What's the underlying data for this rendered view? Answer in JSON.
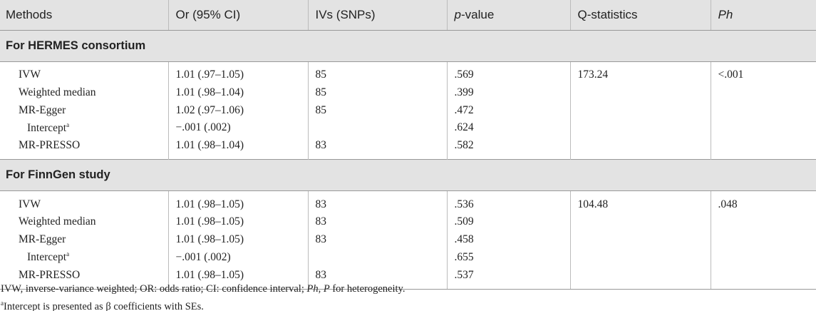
{
  "table": {
    "header": [
      "Methods",
      "Or (95% CI)",
      "IVs (SNPs)",
      [
        {
          "i": "p"
        },
        "-value"
      ],
      "Q-statistics",
      [
        {
          "i": "Ph"
        }
      ]
    ],
    "sections": [
      {
        "title": "For HERMES consortium",
        "rows": [
          [
            "IVW",
            "1.01 (.97–1.05)",
            "85",
            ".569",
            "173.24",
            "<.001"
          ],
          [
            "Weighted median",
            "1.01 (.98–1.04)",
            "85",
            ".399",
            null,
            null
          ],
          [
            "MR-Egger",
            "1.02 (.97–1.06)",
            "85",
            ".472",
            null,
            null
          ],
          [
            [
              "Intercept",
              {
                "sup": "a"
              }
            ],
            "−.001 (.002)",
            null,
            ".624",
            null,
            null
          ],
          [
            "MR-PRESSO",
            "1.01 (.98–1.04)",
            "83",
            ".582",
            null,
            null
          ]
        ]
      },
      {
        "title": "For FinnGen study",
        "rows": [
          [
            "IVW",
            "1.01 (.98–1.05)",
            "83",
            ".536",
            "104.48",
            ".048"
          ],
          [
            "Weighted median",
            "1.01 (.98–1.05)",
            "83",
            ".509",
            null,
            null
          ],
          [
            "MR-Egger",
            "1.01 (.98–1.05)",
            "83",
            ".458",
            null,
            null
          ],
          [
            [
              "Intercept",
              {
                "sup": "a"
              }
            ],
            "−.001 (.002)",
            null,
            ".655",
            null,
            null
          ],
          [
            "MR-PRESSO",
            "1.01 (.98–1.05)",
            "83",
            ".537",
            null,
            null
          ]
        ]
      }
    ]
  },
  "footnotes": [
    [
      "IVW, inverse-variance weighted; OR: odds ratio; CI: confidence interval; ",
      {
        "i": "Ph"
      },
      ", ",
      {
        "i": "P"
      },
      " for heterogeneity."
    ],
    [
      {
        "sup": "a"
      },
      "Intercept is presented as β coefficients with SEs."
    ]
  ]
}
